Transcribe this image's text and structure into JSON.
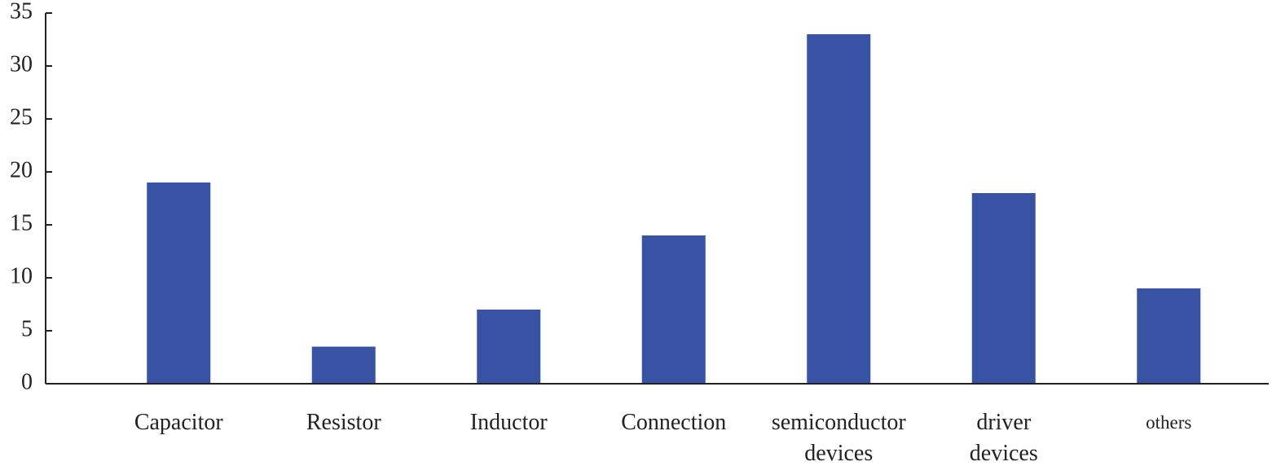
{
  "chart_data": {
    "type": "bar",
    "categories": [
      "Capacitor",
      "Resistor",
      "Inductor",
      "Connection",
      "semiconductor devices",
      "driver devices",
      "others"
    ],
    "values": [
      19,
      3.5,
      7,
      14,
      33,
      18,
      9
    ],
    "color": "#3853a4",
    "ylim": [
      0,
      35
    ],
    "yticks": [
      0,
      5,
      10,
      15,
      20,
      25,
      30,
      35
    ]
  }
}
